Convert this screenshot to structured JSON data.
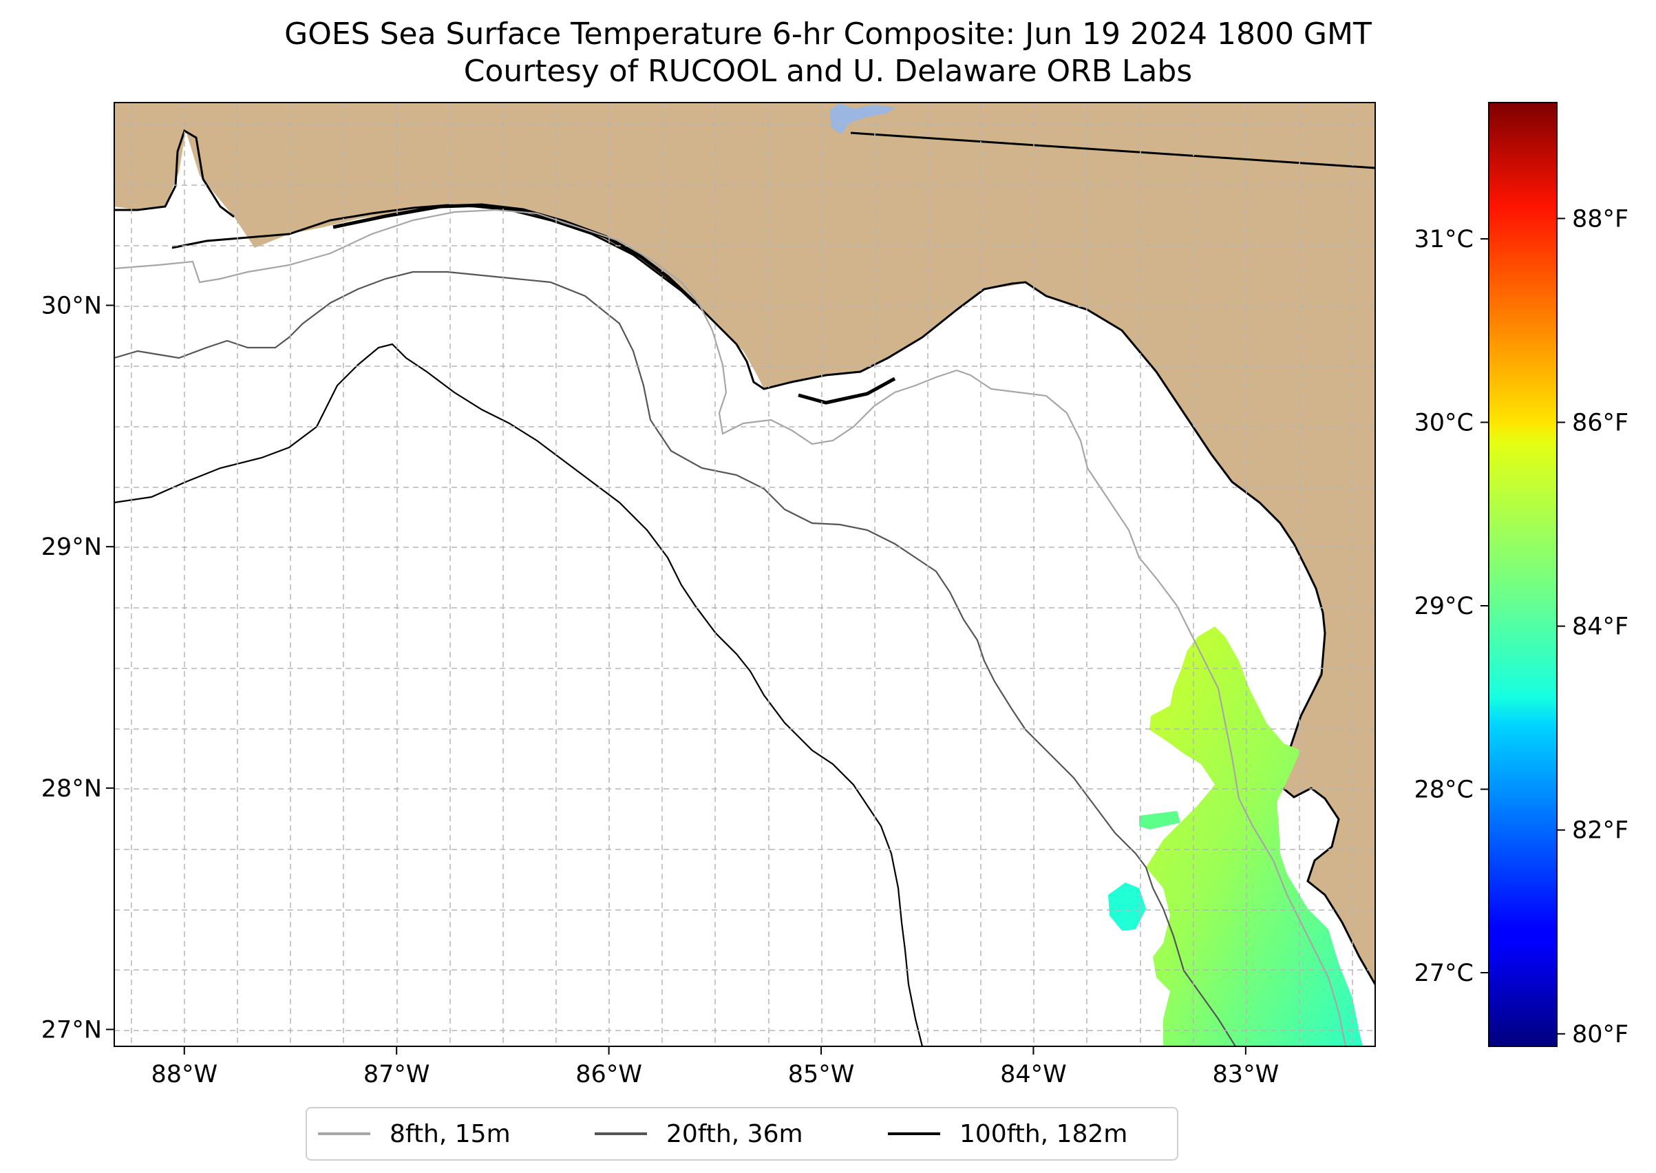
{
  "title_line1": "GOES Sea Surface Temperature 6-hr Composite: Jun 19 2024 1800 GMT",
  "title_line2": "Courtesy of RUCOOL and U. Delaware ORB Labs",
  "map": {
    "extent": {
      "lon_min": -88.33,
      "lon_max": -82.39,
      "lat_min": 26.93,
      "lat_max": 30.84
    },
    "land_color": "#d2b48c",
    "water_color": "#ffffff",
    "lake_color": "#9bb6e0",
    "gridlines": true,
    "lon_ticks": [
      {
        "value": -88,
        "label": "88°W"
      },
      {
        "value": -87,
        "label": "87°W"
      },
      {
        "value": -86,
        "label": "86°W"
      },
      {
        "value": -85,
        "label": "85°W"
      },
      {
        "value": -84,
        "label": "84°W"
      },
      {
        "value": -83,
        "label": "83°W"
      }
    ],
    "lat_ticks": [
      {
        "value": 27,
        "label": "27°N"
      },
      {
        "value": 28,
        "label": "28°N"
      },
      {
        "value": 29,
        "label": "29°N"
      },
      {
        "value": 30,
        "label": "30°N"
      }
    ]
  },
  "colorbar": {
    "colormap": "jet",
    "celsius_ticks": [
      {
        "value": 27,
        "label": "27°C"
      },
      {
        "value": 28,
        "label": "28°C"
      },
      {
        "value": 29,
        "label": "29°C"
      },
      {
        "value": 30,
        "label": "30°C"
      },
      {
        "value": 31,
        "label": "31°C"
      }
    ],
    "fahrenheit_ticks": [
      {
        "value": 80,
        "label": "80°F"
      },
      {
        "value": 82,
        "label": "82°F"
      },
      {
        "value": 84,
        "label": "84°F"
      },
      {
        "value": 86,
        "label": "86°F"
      },
      {
        "value": 88,
        "label": "88°F"
      }
    ]
  },
  "legend": [
    {
      "label": "8fth, 15m",
      "color": "#a6a6a6"
    },
    {
      "label": "20fth, 36m",
      "color": "#555555"
    },
    {
      "label": "100fth, 182m",
      "color": "#000000"
    }
  ]
}
